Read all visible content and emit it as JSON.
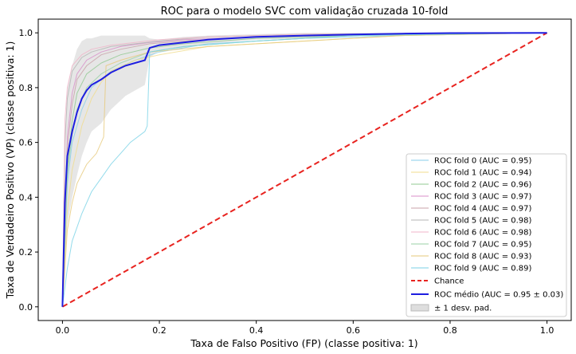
{
  "chart_data": {
    "type": "line",
    "title": "ROC para o modelo SVC com validação cruzada 10-fold",
    "xlabel": "Taxa de Falso Positivo (FP) (classe positiva: 1)",
    "ylabel": "Taxa de Verdadeiro Positivo (VP) (classe positiva: 1)",
    "xlim": [
      -0.05,
      1.05
    ],
    "ylim": [
      -0.05,
      1.05
    ],
    "x_ticks": [
      "0.0",
      "0.2",
      "0.4",
      "0.6",
      "0.8",
      "1.0"
    ],
    "y_ticks": [
      "0.0",
      "0.2",
      "0.4",
      "0.6",
      "0.8",
      "1.0"
    ],
    "grid": false,
    "legend_position": "lower-right",
    "folds": [
      {
        "name": "ROC fold 0 (AUC = 0.95)",
        "color": "#87ceeb",
        "x": [
          0,
          0.01,
          0.02,
          0.04,
          0.06,
          0.1,
          0.15,
          0.2,
          0.3,
          0.5,
          0.7,
          1.0
        ],
        "y": [
          0,
          0.45,
          0.6,
          0.72,
          0.8,
          0.86,
          0.9,
          0.93,
          0.96,
          0.98,
          0.99,
          1.0
        ]
      },
      {
        "name": "ROC fold 1 (AUC = 0.94)",
        "color": "#f0dc8c",
        "x": [
          0,
          0.01,
          0.02,
          0.04,
          0.06,
          0.08,
          0.1,
          0.15,
          0.2,
          0.3,
          0.5,
          0.7,
          1.0
        ],
        "y": [
          0,
          0.35,
          0.5,
          0.66,
          0.76,
          0.82,
          0.86,
          0.9,
          0.92,
          0.95,
          0.97,
          0.99,
          1.0
        ]
      },
      {
        "name": "ROC fold 2 (AUC = 0.96)",
        "color": "#90c890",
        "x": [
          0,
          0.01,
          0.02,
          0.03,
          0.05,
          0.08,
          0.12,
          0.18,
          0.25,
          0.4,
          0.6,
          1.0
        ],
        "y": [
          0,
          0.5,
          0.68,
          0.78,
          0.85,
          0.89,
          0.92,
          0.945,
          0.96,
          0.98,
          0.99,
          1.0
        ]
      },
      {
        "name": "ROC fold 3 (AUC = 0.97)",
        "color": "#d88cc8",
        "x": [
          0,
          0.01,
          0.02,
          0.03,
          0.05,
          0.08,
          0.12,
          0.18,
          0.25,
          0.4,
          0.6,
          1.0
        ],
        "y": [
          0,
          0.62,
          0.78,
          0.85,
          0.9,
          0.93,
          0.95,
          0.965,
          0.975,
          0.985,
          0.995,
          1.0
        ]
      },
      {
        "name": "ROC fold 4 (AUC = 0.97)",
        "color": "#c8a0a8",
        "x": [
          0,
          0.01,
          0.02,
          0.03,
          0.05,
          0.08,
          0.12,
          0.18,
          0.25,
          0.4,
          0.6,
          1.0
        ],
        "y": [
          0,
          0.58,
          0.74,
          0.83,
          0.88,
          0.92,
          0.94,
          0.96,
          0.97,
          0.985,
          0.995,
          1.0
        ]
      },
      {
        "name": "ROC fold 5 (AUC = 0.98)",
        "color": "#b4b4b4",
        "x": [
          0,
          0.005,
          0.01,
          0.02,
          0.04,
          0.06,
          0.1,
          0.15,
          0.2,
          0.3,
          0.5,
          1.0
        ],
        "y": [
          0,
          0.6,
          0.76,
          0.86,
          0.91,
          0.93,
          0.95,
          0.96,
          0.97,
          0.985,
          0.995,
          1.0
        ]
      },
      {
        "name": "ROC fold 6 (AUC = 0.98)",
        "color": "#f0b4c8",
        "x": [
          0,
          0.005,
          0.01,
          0.02,
          0.04,
          0.06,
          0.1,
          0.15,
          0.2,
          0.3,
          0.5,
          1.0
        ],
        "y": [
          0,
          0.68,
          0.8,
          0.88,
          0.92,
          0.94,
          0.955,
          0.965,
          0.975,
          0.985,
          0.995,
          1.0
        ]
      },
      {
        "name": "ROC fold 7 (AUC = 0.95)",
        "color": "#9ad2a6",
        "x": [
          0,
          0.01,
          0.02,
          0.03,
          0.05,
          0.08,
          0.12,
          0.18,
          0.25,
          0.4,
          0.6,
          1.0
        ],
        "y": [
          0,
          0.48,
          0.63,
          0.72,
          0.8,
          0.85,
          0.89,
          0.93,
          0.95,
          0.97,
          0.99,
          1.0
        ]
      },
      {
        "name": "ROC fold 8 (AUC = 0.93)",
        "color": "#e6c878",
        "x": [
          0,
          0.01,
          0.02,
          0.03,
          0.05,
          0.07,
          0.085,
          0.09,
          0.12,
          0.18,
          0.3,
          0.5,
          0.7,
          1.0
        ],
        "y": [
          0,
          0.28,
          0.38,
          0.45,
          0.52,
          0.56,
          0.62,
          0.88,
          0.9,
          0.93,
          0.95,
          0.97,
          0.99,
          1.0
        ]
      },
      {
        "name": "ROC fold 9 (AUC = 0.89)",
        "color": "#78d2e6",
        "x": [
          0,
          0.01,
          0.02,
          0.04,
          0.06,
          0.08,
          0.1,
          0.12,
          0.14,
          0.17,
          0.175,
          0.18,
          0.25,
          0.4,
          0.6,
          1.0
        ],
        "y": [
          0,
          0.14,
          0.24,
          0.34,
          0.42,
          0.47,
          0.52,
          0.56,
          0.6,
          0.64,
          0.66,
          0.93,
          0.95,
          0.97,
          0.99,
          1.0
        ]
      }
    ],
    "chance": {
      "name": "Chance",
      "color": "#e8231f",
      "x": [
        0,
        1
      ],
      "y": [
        0,
        1
      ]
    },
    "mean": {
      "name": "ROC médio (AUC = 0.95 ± 0.03)",
      "color": "#1e1ee0",
      "x": [
        0,
        0.005,
        0.01,
        0.02,
        0.03,
        0.04,
        0.05,
        0.06,
        0.08,
        0.1,
        0.13,
        0.17,
        0.18,
        0.2,
        0.25,
        0.3,
        0.4,
        0.5,
        0.6,
        0.7,
        0.8,
        1.0
      ],
      "y": [
        0,
        0.38,
        0.55,
        0.64,
        0.71,
        0.76,
        0.79,
        0.81,
        0.83,
        0.855,
        0.88,
        0.9,
        0.945,
        0.955,
        0.965,
        0.975,
        0.985,
        0.99,
        0.994,
        0.997,
        0.999,
        1.0
      ]
    },
    "std_band": {
      "name": "± 1 desv. pad.",
      "color": "#c8c8c8",
      "x": [
        0,
        0.005,
        0.01,
        0.02,
        0.03,
        0.04,
        0.05,
        0.06,
        0.08,
        0.1,
        0.13,
        0.17,
        0.18,
        0.2,
        0.25,
        0.3,
        0.4,
        0.5,
        0.6,
        0.7,
        0.8,
        1.0
      ],
      "upper": [
        0,
        0.62,
        0.8,
        0.88,
        0.94,
        0.97,
        0.98,
        0.98,
        0.99,
        0.99,
        0.99,
        0.99,
        0.98,
        0.975,
        0.985,
        0.99,
        0.995,
        1.0,
        1.0,
        1.0,
        1.0,
        1.0
      ],
      "lower": [
        0,
        0.14,
        0.3,
        0.4,
        0.48,
        0.55,
        0.6,
        0.64,
        0.67,
        0.72,
        0.77,
        0.81,
        0.91,
        0.935,
        0.945,
        0.96,
        0.975,
        0.98,
        0.988,
        0.994,
        0.998,
        1.0
      ]
    }
  }
}
